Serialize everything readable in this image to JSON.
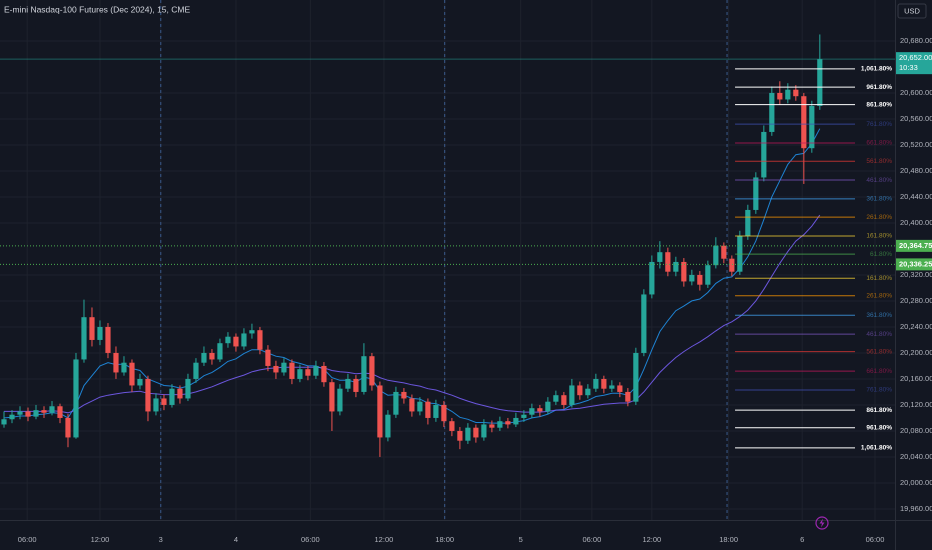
{
  "chart_data": {
    "type": "candlestick",
    "title": "E-mini Nasdaq-100 Futures (Dec 2024), 15, CME",
    "currency": "USD",
    "up_color": "#26a69a",
    "down_color": "#ef5350",
    "ylim": [
      19943,
      20743
    ],
    "yticks": [
      {
        "value": 19960,
        "label": "19,960.00"
      },
      {
        "value": 20000,
        "label": "20,000.00"
      },
      {
        "value": 20040,
        "label": "20,040.00"
      },
      {
        "value": 20080,
        "label": "20,080.00"
      },
      {
        "value": 20120,
        "label": "20,120.00"
      },
      {
        "value": 20160,
        "label": "20,160.00"
      },
      {
        "value": 20200,
        "label": "20,200.00"
      },
      {
        "value": 20240,
        "label": "20,240.00"
      },
      {
        "value": 20280,
        "label": "20,280.00"
      },
      {
        "value": 20320,
        "label": "20,320.00"
      },
      {
        "value": 20400,
        "label": "20,400.00"
      },
      {
        "value": 20440,
        "label": "20,440.00"
      },
      {
        "value": 20480,
        "label": "20,480.00"
      },
      {
        "value": 20520,
        "label": "20,520.00"
      },
      {
        "value": 20560,
        "label": "20,560.00"
      },
      {
        "value": 20600,
        "label": "20,600.00"
      },
      {
        "value": 20680,
        "label": "20,680.00"
      }
    ],
    "xlim": [
      -0.5,
      111.4
    ],
    "xticks": [
      {
        "value": 2.9,
        "label": "06:00"
      },
      {
        "value": 12,
        "label": "12:00"
      },
      {
        "value": 19.6,
        "label": "3"
      },
      {
        "value": 29,
        "label": "4"
      },
      {
        "value": 38.3,
        "label": "06:00"
      },
      {
        "value": 47.5,
        "label": "12:00"
      },
      {
        "value": 55.1,
        "label": "18:00"
      },
      {
        "value": 64.6,
        "label": "5"
      },
      {
        "value": 73.5,
        "label": "06:00"
      },
      {
        "value": 81,
        "label": "12:00"
      },
      {
        "value": 90.6,
        "label": "18:00"
      },
      {
        "value": 99.8,
        "label": "6"
      },
      {
        "value": 108.9,
        "label": "06:00"
      }
    ],
    "session_breaks": [
      19.6,
      55.1,
      90.4
    ],
    "ohlc": [
      [
        20090,
        20110,
        20085,
        20098
      ],
      [
        20098,
        20112,
        20092,
        20105
      ],
      [
        20105,
        20118,
        20098,
        20110
      ],
      [
        20110,
        20116,
        20095,
        20102
      ],
      [
        20102,
        20120,
        20098,
        20112
      ],
      [
        20112,
        20118,
        20100,
        20108
      ],
      [
        20108,
        20126,
        20104,
        20118
      ],
      [
        20118,
        20122,
        20092,
        20100
      ],
      [
        20100,
        20106,
        20055,
        20070
      ],
      [
        20070,
        20200,
        20068,
        20190
      ],
      [
        20190,
        20282,
        20185,
        20255
      ],
      [
        20255,
        20270,
        20210,
        20220
      ],
      [
        20220,
        20250,
        20212,
        20240
      ],
      [
        20240,
        20246,
        20192,
        20200
      ],
      [
        20200,
        20210,
        20160,
        20170
      ],
      [
        20170,
        20195,
        20165,
        20185
      ],
      [
        20185,
        20190,
        20140,
        20150
      ],
      [
        20150,
        20168,
        20144,
        20160
      ],
      [
        20160,
        20165,
        20095,
        20110
      ],
      [
        20110,
        20138,
        20104,
        20130
      ],
      [
        20130,
        20136,
        20112,
        20120
      ],
      [
        20120,
        20152,
        20116,
        20145
      ],
      [
        20145,
        20150,
        20122,
        20130
      ],
      [
        20130,
        20168,
        20126,
        20160
      ],
      [
        20160,
        20192,
        20154,
        20185
      ],
      [
        20185,
        20210,
        20180,
        20200
      ],
      [
        20200,
        20206,
        20182,
        20190
      ],
      [
        20190,
        20222,
        20186,
        20215
      ],
      [
        20215,
        20232,
        20208,
        20225
      ],
      [
        20225,
        20230,
        20202,
        20210
      ],
      [
        20210,
        20238,
        20205,
        20230
      ],
      [
        20230,
        20245,
        20222,
        20235
      ],
      [
        20235,
        20240,
        20198,
        20205
      ],
      [
        20205,
        20212,
        20172,
        20180
      ],
      [
        20180,
        20188,
        20160,
        20170
      ],
      [
        20170,
        20192,
        20165,
        20185
      ],
      [
        20185,
        20190,
        20152,
        20160
      ],
      [
        20160,
        20182,
        20155,
        20175
      ],
      [
        20175,
        20180,
        20158,
        20165
      ],
      [
        20165,
        20188,
        20160,
        20180
      ],
      [
        20180,
        20186,
        20148,
        20155
      ],
      [
        20155,
        20160,
        20080,
        20110
      ],
      [
        20110,
        20152,
        20104,
        20145
      ],
      [
        20145,
        20168,
        20140,
        20160
      ],
      [
        20160,
        20166,
        20132,
        20140
      ],
      [
        20140,
        20215,
        20136,
        20195
      ],
      [
        20195,
        20200,
        20142,
        20150
      ],
      [
        20150,
        20156,
        20040,
        20070
      ],
      [
        20070,
        20112,
        20064,
        20105
      ],
      [
        20105,
        20148,
        20100,
        20140
      ],
      [
        20140,
        20146,
        20122,
        20130
      ],
      [
        20130,
        20136,
        20102,
        20110
      ],
      [
        20110,
        20132,
        20104,
        20125
      ],
      [
        20125,
        20130,
        20090,
        20100
      ],
      [
        20100,
        20128,
        20094,
        20120
      ],
      [
        20120,
        20126,
        20086,
        20095
      ],
      [
        20095,
        20100,
        20072,
        20080
      ],
      [
        20080,
        20086,
        20052,
        20065
      ],
      [
        20065,
        20092,
        20060,
        20085
      ],
      [
        20085,
        20090,
        20062,
        20070
      ],
      [
        20070,
        20098,
        20065,
        20090
      ],
      [
        20090,
        20096,
        20078,
        20085
      ],
      [
        20085,
        20102,
        20080,
        20095
      ],
      [
        20095,
        20100,
        20084,
        20090
      ],
      [
        20090,
        20108,
        20086,
        20100
      ],
      [
        20100,
        20112,
        20094,
        20105
      ],
      [
        20105,
        20122,
        20100,
        20115
      ],
      [
        20115,
        20120,
        20102,
        20110
      ],
      [
        20110,
        20132,
        20106,
        20125
      ],
      [
        20125,
        20142,
        20120,
        20135
      ],
      [
        20135,
        20140,
        20114,
        20120
      ],
      [
        20120,
        20160,
        20116,
        20150
      ],
      [
        20150,
        20156,
        20128,
        20135
      ],
      [
        20135,
        20152,
        20130,
        20145
      ],
      [
        20145,
        20168,
        20140,
        20160
      ],
      [
        20160,
        20165,
        20138,
        20145
      ],
      [
        20145,
        20158,
        20140,
        20150
      ],
      [
        20150,
        20155,
        20132,
        20140
      ],
      [
        20140,
        20146,
        20118,
        20125
      ],
      [
        20125,
        20208,
        20120,
        20200
      ],
      [
        20200,
        20298,
        20195,
        20290
      ],
      [
        20290,
        20350,
        20284,
        20340
      ],
      [
        20340,
        20372,
        20330,
        20355
      ],
      [
        20355,
        20362,
        20318,
        20325
      ],
      [
        20325,
        20348,
        20318,
        20340
      ],
      [
        20340,
        20346,
        20302,
        20310
      ],
      [
        20310,
        20328,
        20304,
        20320
      ],
      [
        20320,
        20326,
        20296,
        20305
      ],
      [
        20305,
        20342,
        20300,
        20335
      ],
      [
        20335,
        20378,
        20330,
        20365
      ],
      [
        20365,
        20370,
        20338,
        20345
      ],
      [
        20345,
        20350,
        20318,
        20325
      ],
      [
        20325,
        20388,
        20320,
        20380
      ],
      [
        20380,
        20428,
        20374,
        20420
      ],
      [
        20420,
        20478,
        20414,
        20470
      ],
      [
        20470,
        20550,
        20464,
        20540
      ],
      [
        20540,
        20610,
        20534,
        20600
      ],
      [
        20600,
        20618,
        20582,
        20590
      ],
      [
        20590,
        20615,
        20584,
        20605
      ],
      [
        20605,
        20612,
        20588,
        20595
      ],
      [
        20595,
        20600,
        20460,
        20515
      ],
      [
        20515,
        20588,
        20508,
        20580
      ],
      [
        20580,
        20690,
        20574,
        20652
      ]
    ],
    "series": [
      {
        "color": "#2196f3",
        "values": [
          20100,
          20101,
          20103,
          20103,
          20105,
          20106,
          20108,
          20107,
          20100,
          20120,
          20150,
          20165,
          20180,
          20185,
          20182,
          20183,
          20176,
          20173,
          20160,
          20155,
          20150,
          20149,
          20146,
          20149,
          20156,
          20165,
          20170,
          20178,
          20187,
          20191,
          20199,
          20205,
          20205,
          20200,
          20195,
          20193,
          20187,
          20184,
          20180,
          20180,
          20175,
          20162,
          20158,
          20158,
          20155,
          20163,
          20160,
          20142,
          20135,
          20136,
          20135,
          20130,
          20129,
          20123,
          20122,
          20117,
          20110,
          20101,
          20098,
          20093,
          20093,
          20092,
          20092,
          20092,
          20094,
          20096,
          20100,
          20102,
          20106,
          20112,
          20113,
          20120,
          20123,
          20127,
          20133,
          20135,
          20138,
          20138,
          20135,
          20148,
          20175,
          20205,
          20233,
          20250,
          20265,
          20272,
          20280,
          20283,
          20293,
          20307,
          20315,
          20317,
          20330,
          20348,
          20372,
          20405,
          20440,
          20465,
          20490,
          20505,
          20507,
          20522,
          20545
        ]
      },
      {
        "color": "#7b61ff",
        "values": [
          20110,
          20110,
          20110,
          20110,
          20110,
          20110,
          20111,
          20110,
          20108,
          20112,
          20120,
          20126,
          20132,
          20135,
          20137,
          20139,
          20140,
          20141,
          20138,
          20137,
          20136,
          20136,
          20136,
          20137,
          20140,
          20144,
          20148,
          20153,
          20158,
          20162,
          20166,
          20171,
          20174,
          20176,
          20177,
          20178,
          20178,
          20178,
          20178,
          20178,
          20177,
          20173,
          20171,
          20170,
          20168,
          20169,
          20168,
          20162,
          20158,
          20156,
          20154,
          20151,
          20149,
          20145,
          20143,
          20139,
          20135,
          20130,
          20126,
          20122,
          20119,
          20116,
          20113,
          20111,
          20110,
          20109,
          20109,
          20109,
          20110,
          20112,
          20112,
          20114,
          20115,
          20117,
          20119,
          20121,
          20122,
          20123,
          20123,
          20128,
          20140,
          20155,
          20170,
          20182,
          20193,
          20202,
          20210,
          20217,
          20225,
          20234,
          20242,
          20248,
          20256,
          20266,
          20280,
          20298,
          20318,
          20338,
          20356,
          20372,
          20382,
          20395,
          20412
        ]
      }
    ],
    "fib_x": [
      91.4,
      106.4
    ],
    "fib_levels": [
      {
        "label": "1,061.80%",
        "value": 20637,
        "color": "#ffffff"
      },
      {
        "label": "961.80%",
        "value": 20609,
        "color": "#ffffff"
      },
      {
        "label": "861.80%",
        "value": 20582,
        "color": "#ffffff"
      },
      {
        "label": "761.80%",
        "value": 20552,
        "color": "#3f51b5"
      },
      {
        "label": "661.80%",
        "value": 20523,
        "color": "#c2185b"
      },
      {
        "label": "561.80%",
        "value": 20495,
        "color": "#e53935"
      },
      {
        "label": "461.80%",
        "value": 20466,
        "color": "#7e57c2"
      },
      {
        "label": "361.80%",
        "value": 20437,
        "color": "#42a5f5"
      },
      {
        "label": "261.80%",
        "value": 20409,
        "color": "#ff9800"
      },
      {
        "label": "161.80%",
        "value": 20380,
        "color": "#fdd835"
      },
      {
        "label": "61.80%",
        "value": 20352,
        "color": "#4caf50"
      },
      {
        "label": "161.80%",
        "value": 20315,
        "color": "#fdd835"
      },
      {
        "label": "261.80%",
        "value": 20288,
        "color": "#ff9800"
      },
      {
        "label": "361.80%",
        "value": 20258,
        "color": "#42a5f5"
      },
      {
        "label": "461.80%",
        "value": 20229,
        "color": "#7e57c2"
      },
      {
        "label": "561.80%",
        "value": 20202,
        "color": "#e53935"
      },
      {
        "label": "661.80%",
        "value": 20172,
        "color": "#c2185b"
      },
      {
        "label": "761.80%",
        "value": 20143,
        "color": "#3f51b5"
      },
      {
        "label": "861.80%",
        "value": 20112,
        "color": "#ffffff"
      },
      {
        "label": "961.80%",
        "value": 20085,
        "color": "#ffffff"
      },
      {
        "label": "1,061.80%",
        "value": 20054,
        "color": "#ffffff"
      }
    ],
    "levels": [
      {
        "value": 20364.75,
        "label": "20,364.75",
        "color": "#4caf50"
      },
      {
        "value": 20336.25,
        "label": "20,336.25",
        "color": "#4caf50"
      }
    ],
    "last_price": {
      "value": 20652,
      "label": "20,652.00",
      "countdown": "10:33",
      "color": "#26a69a"
    }
  }
}
